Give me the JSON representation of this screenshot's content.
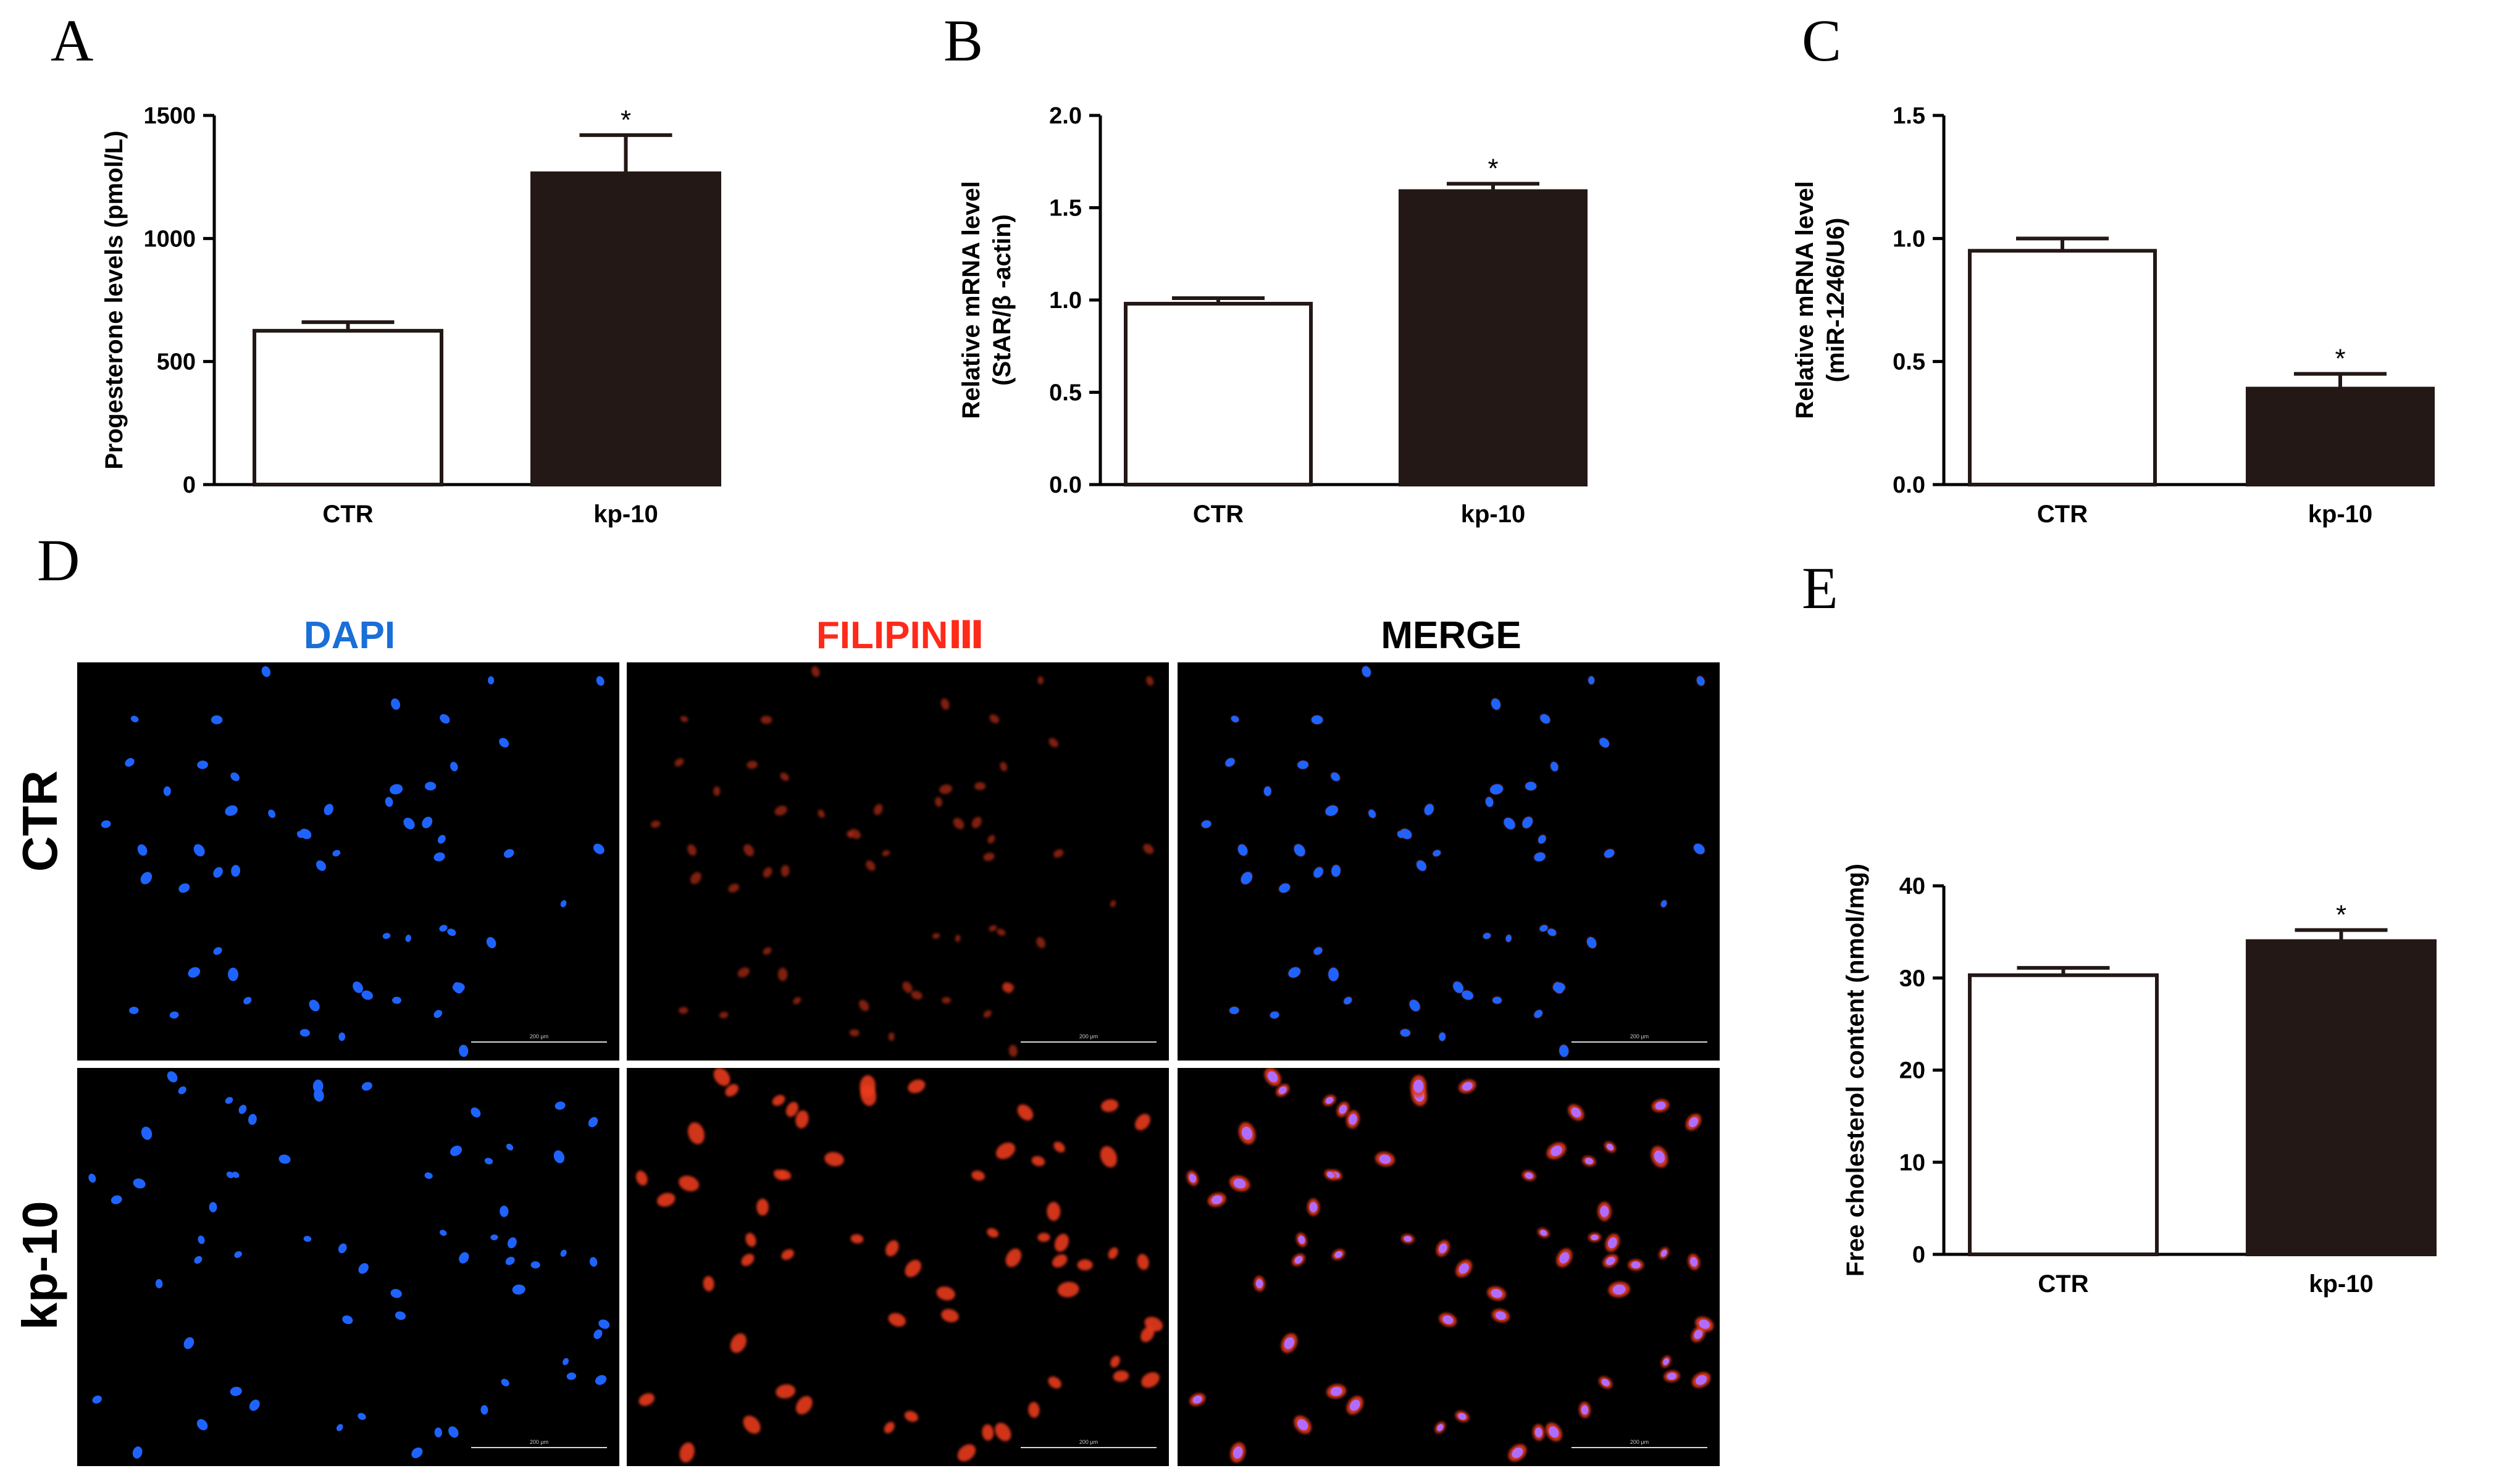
{
  "colors": {
    "ctr_bar": "#ffffff",
    "kp_bar": "#231815",
    "dapi": "#1a6fd8",
    "filipin": "#ff2a1a",
    "merge": "#000000",
    "nucleus": "#1f63ff",
    "cholesterol": "#e83a1e"
  },
  "chart_data": [
    {
      "panel": "A",
      "type": "bar",
      "categories": [
        "CTR",
        "kp-10"
      ],
      "values": [
        625,
        1265
      ],
      "errors": [
        35,
        155
      ],
      "significance": [
        "",
        "*"
      ],
      "ylabel": "Progesterone levels (pmol/L)",
      "ylim": [
        0,
        1500
      ],
      "yticks": [
        "0",
        "500",
        "1000",
        "1500"
      ],
      "ytick_values": [
        0,
        500,
        1000,
        1500
      ]
    },
    {
      "panel": "B",
      "type": "bar",
      "categories": [
        "CTR",
        "kp-10"
      ],
      "values": [
        0.98,
        1.59
      ],
      "errors": [
        0.03,
        0.04
      ],
      "significance": [
        "",
        "*"
      ],
      "ylabel": [
        "Relative mRNA level",
        "(StAR/β -actin)"
      ],
      "ylim": [
        0,
        2.0
      ],
      "yticks": [
        "0.0",
        "0.5",
        "1.0",
        "1.5",
        "2.0"
      ],
      "ytick_values": [
        0,
        0.5,
        1.0,
        1.5,
        2.0
      ]
    },
    {
      "panel": "C",
      "type": "bar",
      "categories": [
        "CTR",
        "kp-10"
      ],
      "values": [
        0.95,
        0.39
      ],
      "errors": [
        0.05,
        0.06
      ],
      "significance": [
        "",
        "*"
      ],
      "ylabel": [
        "Relative mRNA level",
        "(miR-1246/U6)"
      ],
      "ylim": [
        0,
        1.5
      ],
      "yticks": [
        "0.0",
        "0.5",
        "1.0",
        "1.5"
      ],
      "ytick_values": [
        0,
        0.5,
        1.0,
        1.5
      ]
    },
    {
      "panel": "E",
      "type": "bar",
      "categories": [
        "CTR",
        "kp-10"
      ],
      "values": [
        30.3,
        34.0
      ],
      "errors": [
        0.8,
        1.2
      ],
      "significance": [
        "",
        "*"
      ],
      "ylabel": "Free cholesterol content (nmol/mg)",
      "ylim": [
        0,
        40
      ],
      "yticks": [
        "0",
        "10",
        "20",
        "30",
        "40"
      ],
      "ytick_values": [
        0,
        10,
        20,
        30,
        40
      ]
    }
  ],
  "microscopy": {
    "panel": "D",
    "columns": [
      "DAPI",
      "FILIPINⅢ",
      "MERGE"
    ],
    "rows": [
      "CTR",
      "kp-10"
    ],
    "scale_bar": "200 μm"
  }
}
